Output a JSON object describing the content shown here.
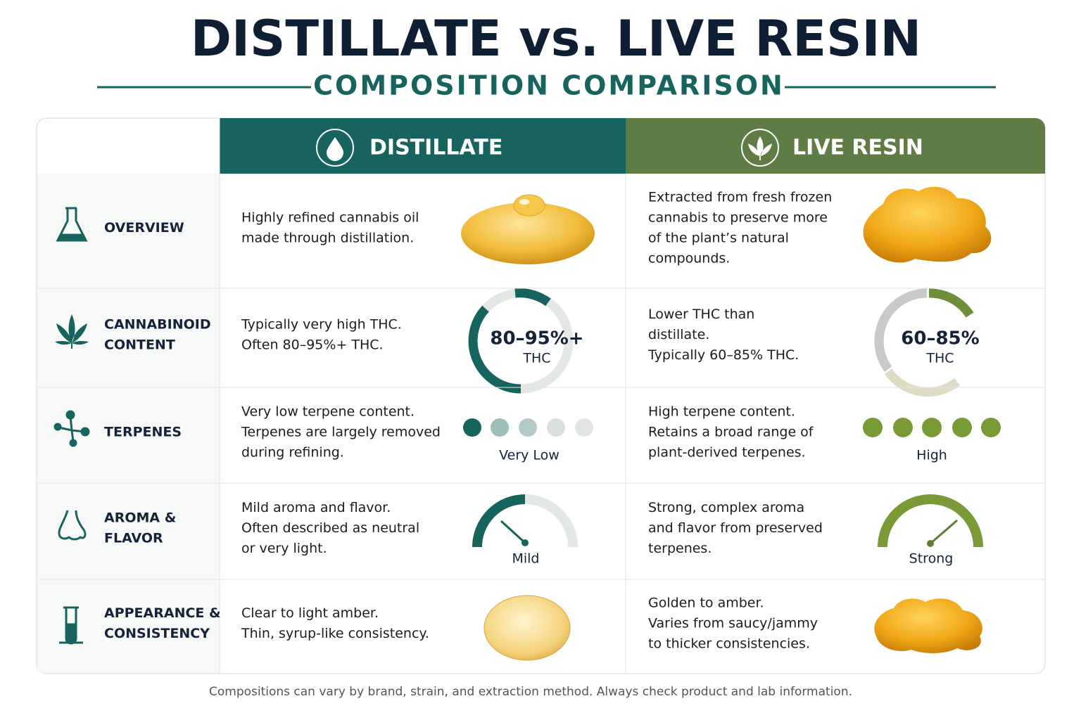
{
  "header": {
    "title": "DISTILLATE vs. LIVE RESIN",
    "subtitle": "COMPOSITION COMPARISON"
  },
  "table": {
    "columns": [
      "DISTILLATE",
      "LIVE RESIN"
    ],
    "rows": [
      {
        "label": [
          "OVERVIEW"
        ],
        "distillate": [
          "Highly refined cannabis oil",
          "made through distillation."
        ],
        "live_resin": [
          "Extracted from fresh frozen",
          "cannabis to preserve more",
          "of the plant’s natural",
          "compounds."
        ]
      },
      {
        "label": [
          "CANNABINOID",
          "CONTENT"
        ],
        "distillate": [
          "Typically very high THC.",
          "Often 80–95%+ THC."
        ],
        "live_resin": [
          "Lower THC than",
          "distillate.",
          "Typically 60–85% THC."
        ],
        "distillate_badge": [
          "80–95%+",
          "THC"
        ],
        "live_resin_badge": [
          "60–85%",
          "THC"
        ]
      },
      {
        "label": [
          "TERPENES"
        ],
        "distillate": [
          "Very low terpene content.",
          "Terpenes are largely removed",
          "during refining."
        ],
        "live_resin": [
          "High terpene content.",
          "Retains a broad range of",
          "plant-derived terpenes."
        ],
        "distillate_badge": [
          "Very Low"
        ],
        "live_resin_badge": [
          "High"
        ]
      },
      {
        "label": [
          "AROMA &",
          "FLAVOR"
        ],
        "distillate": [
          "Mild aroma and flavor.",
          "Often described as neutral",
          "or very light."
        ],
        "live_resin": [
          "Strong, complex aroma",
          "and flavor from preserved",
          "terpenes."
        ],
        "distillate_badge": [
          "Mild"
        ],
        "live_resin_badge": [
          "Strong"
        ]
      },
      {
        "label": [
          "APPEARANCE &",
          "CONSISTENCY"
        ],
        "distillate": [
          "Clear to light amber.",
          "Thin, syrup-like consistency."
        ],
        "live_resin": [
          "Golden to amber.",
          "Varies from saucy/jammy",
          "to thicker consistencies."
        ]
      }
    ]
  },
  "footer": "Compositions can vary by brand, strain, and extraction method. Always check product and lab information."
}
